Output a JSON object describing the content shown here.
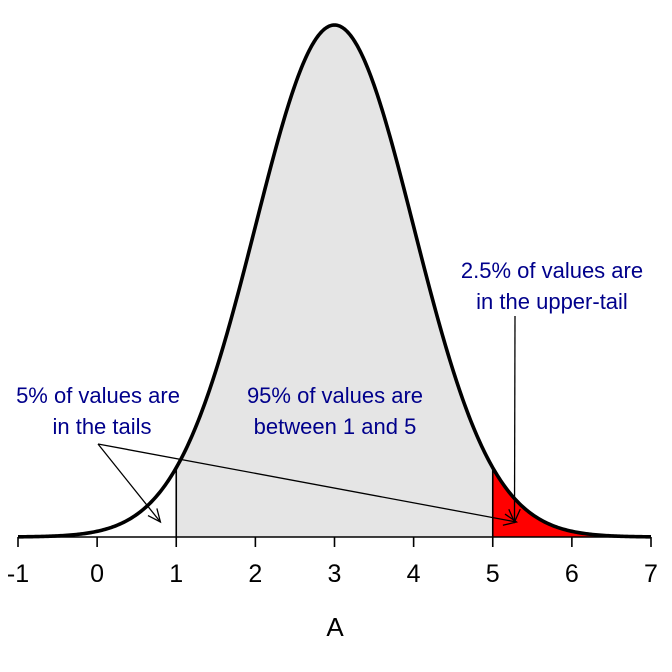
{
  "chart_data": {
    "type": "area",
    "distribution": "normal",
    "mean": 3,
    "sd": 1,
    "xlabel": "A",
    "ylabel": "",
    "title": "",
    "xlim": [
      -1,
      7
    ],
    "xticks": [
      -1,
      0,
      1,
      2,
      3,
      4,
      5,
      6,
      7
    ],
    "interval": [
      1,
      5
    ],
    "grid": false,
    "legend": "none",
    "regions": [
      {
        "from": -1,
        "to": 1,
        "fill": "#ffffff"
      },
      {
        "from": 1,
        "to": 5,
        "fill": "#e5e5e5"
      },
      {
        "from": 5,
        "to": 7,
        "fill": "#ff0000"
      }
    ],
    "annotations": [
      {
        "lines": [
          "5% of values are",
          "in the tails"
        ],
        "points_to_x": [
          0.8,
          5.3
        ]
      },
      {
        "lines": [
          "95% of values are",
          "between 1 and 5"
        ]
      },
      {
        "lines": [
          "2.5% of values are",
          "in the upper-tail"
        ],
        "points_to_x": [
          5.3
        ]
      }
    ],
    "colors": {
      "curve": "#000000",
      "annotation_text": "#00008b",
      "middle_fill": "#e5e5e5",
      "upper_tail_fill": "#ff0000"
    }
  }
}
